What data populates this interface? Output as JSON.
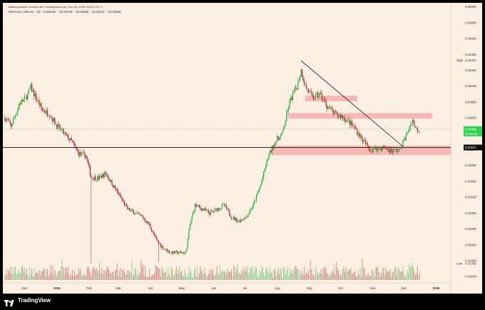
{
  "header": {
    "credit": "balisenpost9ee created with TradingView.com, Dec 16, 2025 09:03 UTC+1"
  },
  "symbol_line": {
    "symbol": "Ethereum / Bitcoin · 1D · Coinbase",
    "open": "O0.03448",
    "high": "H0.03459",
    "low": "L0.03444",
    "close": "C0.03458"
  },
  "brand": {
    "name": "TradingView"
  },
  "price_axis": {
    "ticks": [
      "0.05000",
      "0.04800",
      "0.04600",
      "0.04400",
      "0.04200",
      "0.04000",
      "0.03800",
      "0.03600",
      "0.03200",
      "0.03000",
      "0.02800",
      "0.02600",
      "0.02400",
      "0.02200",
      "0.02000",
      "0.01800",
      "0.01600"
    ],
    "high_label": "High",
    "high_value": "0.04324",
    "low_label": "Low",
    "low_value": "0.01765",
    "last_price": "0.03458",
    "countdown": "20:56:56",
    "level_price": "0.03227"
  },
  "time_axis": {
    "ticks": [
      "Dec",
      "2025",
      "Feb",
      "Mar",
      "Apr",
      "May",
      "Jun",
      "Jul",
      "Aug",
      "Sep",
      "Oct",
      "Nov",
      "Dec",
      "2026"
    ]
  },
  "colors": {
    "background": "#fbeee2",
    "up": "#22ab3c",
    "down": "#a3262d",
    "zone": "#f4a6a6",
    "level_line": "#111111",
    "last_price_tag": "#2fd14f"
  },
  "chart_data": {
    "type": "candlestick",
    "title": "",
    "symbol": "Ethereum / Bitcoin",
    "interval": "1D",
    "exchange": "Coinbase",
    "ylim": [
      0.0152,
      0.0505
    ],
    "x_range": [
      "2024-11-10",
      "2026-01-15"
    ],
    "yscale": "linear",
    "grid": false,
    "close_path": [
      [
        "2024-11-12",
        0.036
      ],
      [
        "2024-11-18",
        0.035
      ],
      [
        "2024-11-26",
        0.0378
      ],
      [
        "2024-12-02",
        0.0385
      ],
      [
        "2024-12-07",
        0.0398
      ],
      [
        "2024-12-12",
        0.0385
      ],
      [
        "2024-12-18",
        0.037
      ],
      [
        "2024-12-25",
        0.0365
      ],
      [
        "2025-01-01",
        0.035
      ],
      [
        "2025-01-08",
        0.034
      ],
      [
        "2025-01-15",
        0.033
      ],
      [
        "2025-01-22",
        0.0315
      ],
      [
        "2025-01-29",
        0.0312
      ],
      [
        "2025-02-03",
        0.0285
      ],
      [
        "2025-02-10",
        0.0284
      ],
      [
        "2025-02-17",
        0.029
      ],
      [
        "2025-02-24",
        0.0275
      ],
      [
        "2025-03-03",
        0.026
      ],
      [
        "2025-03-10",
        0.0245
      ],
      [
        "2025-03-17",
        0.024
      ],
      [
        "2025-03-24",
        0.0235
      ],
      [
        "2025-03-31",
        0.0225
      ],
      [
        "2025-04-07",
        0.0205
      ],
      [
        "2025-04-14",
        0.0195
      ],
      [
        "2025-04-21",
        0.019
      ],
      [
        "2025-04-28",
        0.019
      ],
      [
        "2025-05-05",
        0.019
      ],
      [
        "2025-05-09",
        0.0225
      ],
      [
        "2025-05-14",
        0.025
      ],
      [
        "2025-05-21",
        0.0245
      ],
      [
        "2025-05-28",
        0.024
      ],
      [
        "2025-06-04",
        0.0245
      ],
      [
        "2025-06-11",
        0.025
      ],
      [
        "2025-06-18",
        0.0235
      ],
      [
        "2025-06-25",
        0.023
      ],
      [
        "2025-07-02",
        0.0235
      ],
      [
        "2025-07-09",
        0.025
      ],
      [
        "2025-07-16",
        0.0275
      ],
      [
        "2025-07-23",
        0.031
      ],
      [
        "2025-07-30",
        0.033
      ],
      [
        "2025-08-06",
        0.034
      ],
      [
        "2025-08-13",
        0.038
      ],
      [
        "2025-08-20",
        0.04
      ],
      [
        "2025-08-24",
        0.042
      ],
      [
        "2025-08-28",
        0.04
      ],
      [
        "2025-09-04",
        0.0385
      ],
      [
        "2025-09-11",
        0.039
      ],
      [
        "2025-09-18",
        0.0375
      ],
      [
        "2025-09-25",
        0.0365
      ],
      [
        "2025-10-02",
        0.0362
      ],
      [
        "2025-10-09",
        0.0355
      ],
      [
        "2025-10-16",
        0.0345
      ],
      [
        "2025-10-23",
        0.033
      ],
      [
        "2025-10-30",
        0.032
      ],
      [
        "2025-11-06",
        0.0322
      ],
      [
        "2025-11-13",
        0.0322
      ],
      [
        "2025-11-20",
        0.0318
      ],
      [
        "2025-11-27",
        0.032
      ],
      [
        "2025-12-04",
        0.034
      ],
      [
        "2025-12-09",
        0.0358
      ],
      [
        "2025-12-13",
        0.0345
      ],
      [
        "2025-12-16",
        0.0346
      ]
    ],
    "horizontal_levels": [
      {
        "price": 0.03227
      }
    ],
    "zones": [
      {
        "start": "2025-07-26",
        "end": "2026-01-15",
        "top": 0.0325,
        "bottom": 0.0313
      },
      {
        "start": "2025-08-11",
        "end": "2025-12-28",
        "top": 0.0366,
        "bottom": 0.0359
      },
      {
        "start": "2025-08-28",
        "end": "2025-10-17",
        "top": 0.0388,
        "bottom": 0.0381
      }
    ],
    "trendline": {
      "start": [
        "2025-08-24",
        0.0432
      ],
      "end": [
        "2025-11-30",
        0.0324
      ]
    },
    "volume_baseline": 0.0152
  }
}
